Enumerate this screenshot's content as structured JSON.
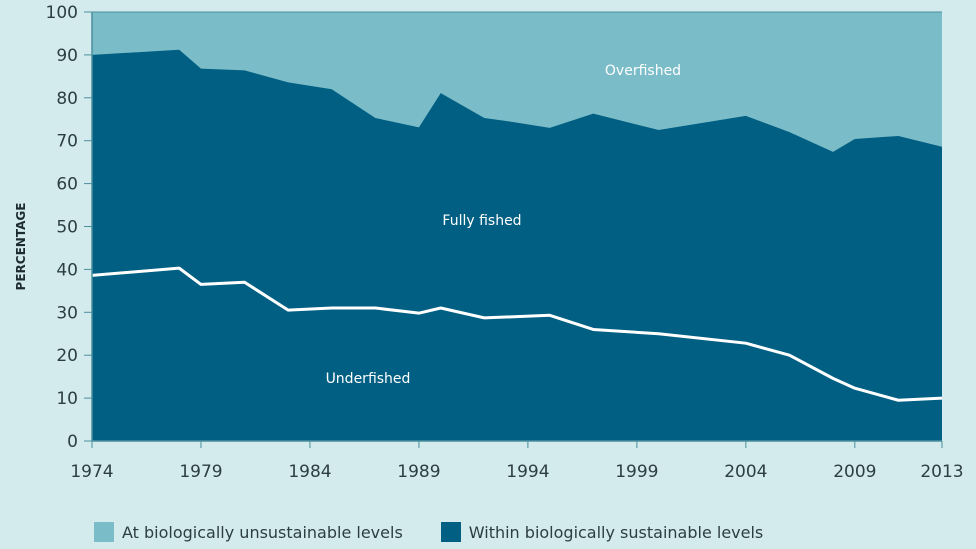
{
  "chart_data": {
    "type": "area",
    "title": "",
    "xlabel": "",
    "ylabel": "PERCENTAGE",
    "xlim": [
      1974,
      2013
    ],
    "ylim": [
      0,
      100
    ],
    "x_ticks": [
      1974,
      1979,
      1984,
      1989,
      1994,
      1999,
      2004,
      2009,
      2013
    ],
    "y_ticks": [
      0,
      10,
      20,
      30,
      40,
      50,
      60,
      70,
      80,
      90,
      100
    ],
    "grid": false,
    "colors": {
      "background": "#d3ebec",
      "unsustainable": "#7bbcc9",
      "sustainable": "#005f82",
      "underfished_line": "#ffffff"
    },
    "series": [
      {
        "name": "Within biologically sustainable levels",
        "x": [
          1974,
          1978,
          1979,
          1981,
          1983,
          1985,
          1987,
          1989,
          1990,
          1992,
          1993,
          1995,
          1997,
          2000,
          2004,
          2006,
          2008,
          2009,
          2011,
          2013
        ],
        "y": [
          90.0,
          91.2,
          86.8,
          86.4,
          83.6,
          82.0,
          75.3,
          73.1,
          81.1,
          75.3,
          74.6,
          73.0,
          76.3,
          72.5,
          75.8,
          72.0,
          67.4,
          70.4,
          71.1,
          68.6
        ]
      },
      {
        "name": "Underfished boundary",
        "x": [
          1974,
          1978,
          1979,
          1981,
          1983,
          1985,
          1987,
          1989,
          1990,
          1992,
          1995,
          1997,
          2000,
          2004,
          2006,
          2008,
          2009,
          2011,
          2013
        ],
        "y": [
          38.6,
          40.3,
          36.5,
          37.0,
          30.5,
          31.0,
          31.0,
          29.8,
          31.0,
          28.7,
          29.3,
          26.0,
          25.0,
          22.8,
          20.0,
          14.6,
          12.3,
          9.5,
          10.0
        ]
      }
    ],
    "annotations": {
      "overfished": "Overfished",
      "fully_fished": "Fully fished",
      "underfished": "Underfished"
    },
    "legend": {
      "placement": "bottom",
      "items": [
        "At biologically unsustainable levels",
        "Within biologically sustainable levels"
      ]
    }
  }
}
